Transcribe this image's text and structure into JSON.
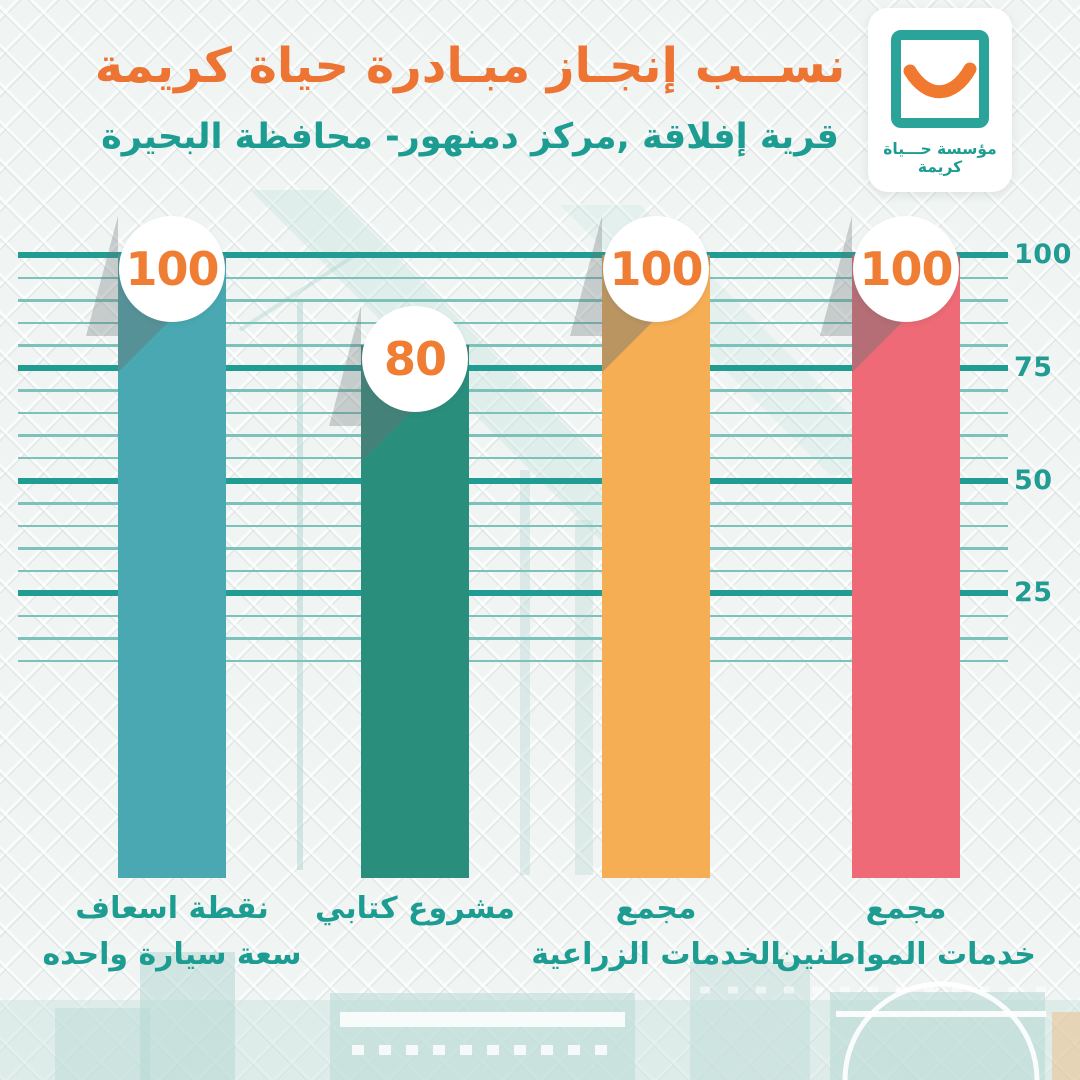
{
  "header": {
    "title": "نســب إنجـاز مبـادرة حياة كريمة",
    "subtitle": "قرية إفلاقة ,مركز دمنهور- محافظة البحيرة"
  },
  "logo": {
    "caption": "مؤسسة حـــياة كريمة",
    "frame_color": "#2AA49B",
    "smile_color": "#F0782F"
  },
  "colors": {
    "title_orange": "#ED7433",
    "teal_text": "#1D9C92",
    "grid_major": "#219C93",
    "grid_minor": "#7CC2BB",
    "value_orange": "#EF7D33",
    "long_shadow_grey": "rgba(104,114,117,0.4)",
    "background": "#F0F4F3"
  },
  "chart_data": {
    "type": "bar",
    "title": "نســب إنجـاز مبـادرة حياة كريمة",
    "subtitle": "قرية إفلاقة ,مركز دمنهور- محافظة البحيرة",
    "categories": [
      "نقطة اسعاف سعة سيارة واحده",
      "مشروع كتابي",
      "مجمع الخدمات الزراعية",
      "مجمع خدمات المواطنين"
    ],
    "category_label_lines": [
      [
        "نقطة اسعاف",
        "سعة سيارة واحده"
      ],
      [
        "مشروع كتابي"
      ],
      [
        "مجمع",
        "الخدمات الزراعية"
      ],
      [
        "مجمع",
        "خدمات المواطنين"
      ]
    ],
    "values": [
      100,
      80,
      100,
      100
    ],
    "bar_colors": [
      "#49A8B2",
      "#2A8E7C",
      "#F6AE55",
      "#ED6A76"
    ],
    "ylim": [
      0,
      100
    ],
    "yticks": [
      100,
      75,
      50,
      25
    ],
    "minor_step": 5,
    "minor_range": [
      10,
      95
    ],
    "grid": true,
    "legend": false,
    "axis_side": "right",
    "value_labels_shown": true,
    "category_order": "left-to-right"
  }
}
